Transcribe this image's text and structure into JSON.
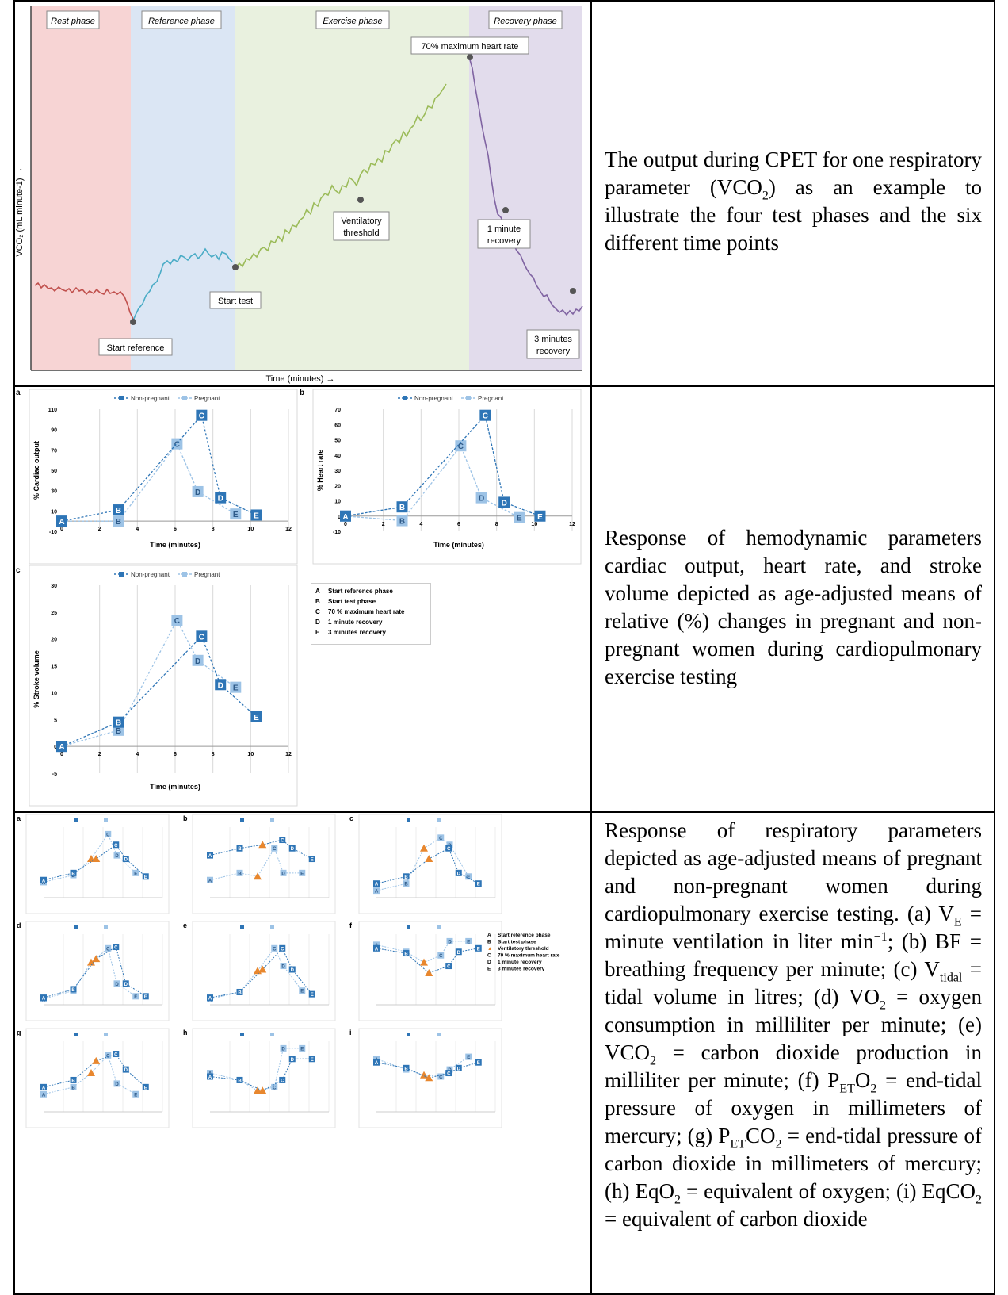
{
  "captions": {
    "row1": "The output during CPET for one respiratory parameter (VCO₂) as an example to illustrate the four test phases and the six different time points",
    "row2": "Response of hemodynamic parameters cardiac output, heart rate, and stroke volume depicted as age-adjusted means of relative (%) changes in pregnant and non-pregnant women during cardiopulmonary exercise testing",
    "row3": "Response of respiratory parameters depicted as age-adjusted means of pregnant and non-pregnant women during cardiopulmonary exercise testing. (a) V_E = minute ventilation in liter min⁻¹; (b) BF = breathing frequency per minute; (c) V_tidal = tidal volume in litres; (d) VO₂ = oxygen consumption in milliliter per minute; (e) VCO₂ = carbon dioxide production in milliliter per minute; (f) P_ETO₂ = end-tidal pressure of oxygen in millimeters of mercury; (g) P_ETCO₂ = end-tidal pressure of carbon dioxide in millimeters of mercury; (h) EqO₂ = equivalent of oxygen; (i) EqCO₂ = equivalent of carbon dioxide"
  },
  "caption3_parts": {
    "intro": "Response of respiratory parameters depicted as age-adjusted means of pregnant and non-pregnant women during cardiopulmonary exercise testing. (a) V",
    "ve_sub": "E",
    "a_rest": " = minute ventilation in liter min",
    "min_sup": "−1",
    "b": "; (b) BF = breathing frequency per minute; (c) V",
    "tidal_sub": "tidal",
    "c_rest": " = tidal volume in litres; (d) VO",
    "two1": "2",
    "d_rest": " = oxygen consumption in milliliter per minute; (e) VCO",
    "two2": "2",
    "e_rest": " = carbon dioxide production in milliliter per minute; (f) P",
    "et1": "ET",
    "f_mid": "O",
    "two3": "2",
    "f_rest": " = end-tidal pressure of oxygen in millimeters of mercury; (g) P",
    "et2": "ET",
    "g_mid": "CO",
    "two4": "2",
    "g_rest": " = end-tidal pressure of carbon dioxide in millimeters of mercury; (h) EqO",
    "two5": "2",
    "h_rest": " = equivalent of oxygen; (i) EqCO",
    "two6": "2",
    "i_rest": " = equivalent of carbon dioxide"
  },
  "caption1_parts": {
    "pre": "The output during CPET for one respiratory parameter (VCO",
    "sub": "2",
    "post": ") as an example to illustrate the four test phases and the six different time points"
  },
  "fig1": {
    "phases": [
      "Rest phase",
      "Reference phase",
      "Exercise phase",
      "Recovery phase"
    ],
    "phase_colors": [
      "#f7d4d4",
      "#dbe6f4",
      "#e9f1df",
      "#e2dcec"
    ],
    "line_colors": [
      "#c0504d",
      "#4bacc6",
      "#9bbb59",
      "#8064a2"
    ],
    "ylabel": "VCO₂ (mL minute-1) →",
    "xlabel": "Time (minutes) →",
    "annotations": [
      "Start reference",
      "Start test",
      "Ventilatory",
      "threshold",
      "70% maximum heart rate",
      "1 minute",
      "recovery",
      "3 minutes",
      "recovery"
    ]
  },
  "fig2_legend": {
    "nonpregnant": "Non-pregnant",
    "pregnant": "Pregnant",
    "colors": {
      "nonpregnant": "#2e75b6",
      "pregnant": "#9dc3e6"
    }
  },
  "fig2_key": [
    [
      "A",
      "Start reference phase"
    ],
    [
      "B",
      "Start test phase"
    ],
    [
      "C",
      "70 % maximum heart rate"
    ],
    [
      "D",
      "1 minute recovery"
    ],
    [
      "E",
      "3 minutes recovery"
    ]
  ],
  "fig3_key": [
    [
      "A",
      "Start reference phase"
    ],
    [
      "B",
      "Start test phase"
    ],
    [
      "▲",
      "Ventilatory threshold"
    ],
    [
      "C",
      "70 % maximum heart rate"
    ],
    [
      "D",
      "1 minute recovery"
    ],
    [
      "E",
      "3 minutes recovery"
    ]
  ],
  "chart_data": [
    {
      "panel": "a",
      "type": "line",
      "xlabel": "Time (minutes)",
      "ylabel": "% Cardiac output",
      "xlim": [
        0,
        12
      ],
      "ylim": [
        -10,
        110
      ],
      "xticks": [
        0,
        2,
        4,
        6,
        8,
        10,
        12
      ],
      "yticks": [
        -10,
        10,
        30,
        50,
        70,
        90,
        110
      ],
      "labels": [
        "A",
        "B",
        "C",
        "D",
        "E"
      ],
      "series": [
        {
          "name": "Non-pregnant",
          "x": [
            0,
            3,
            7.4,
            8.4,
            10.3
          ],
          "y": [
            0,
            11,
            104,
            23,
            6
          ]
        },
        {
          "name": "Pregnant",
          "x": [
            0,
            3,
            6.1,
            7.2,
            9.2
          ],
          "y": [
            0,
            0,
            76,
            29,
            7
          ]
        }
      ]
    },
    {
      "panel": "b",
      "type": "line",
      "xlabel": "Time (minutes)",
      "ylabel": "% Heart rate",
      "xlim": [
        0,
        12
      ],
      "ylim": [
        -10,
        70
      ],
      "xticks": [
        0,
        2,
        4,
        6,
        8,
        10,
        12
      ],
      "yticks": [
        -10,
        0,
        10,
        20,
        30,
        40,
        50,
        60,
        70
      ],
      "labels": [
        "A",
        "B",
        "C",
        "D",
        "E"
      ],
      "series": [
        {
          "name": "Non-pregnant",
          "x": [
            0,
            3,
            7.4,
            8.4,
            10.3
          ],
          "y": [
            0,
            6,
            66,
            9,
            0
          ]
        },
        {
          "name": "Pregnant",
          "x": [
            0,
            3,
            6.1,
            7.2,
            9.2
          ],
          "y": [
            0,
            -3,
            46,
            12,
            -1
          ]
        }
      ]
    },
    {
      "panel": "c",
      "type": "line",
      "xlabel": "Time (minutes)",
      "ylabel": "% Stroke volume",
      "xlim": [
        0,
        12
      ],
      "ylim": [
        -5,
        30
      ],
      "xticks": [
        0,
        2,
        4,
        6,
        8,
        10,
        12
      ],
      "yticks": [
        -5,
        0,
        5,
        10,
        15,
        20,
        25,
        30
      ],
      "labels": [
        "A",
        "B",
        "C",
        "D",
        "E"
      ],
      "series": [
        {
          "name": "Non-pregnant",
          "x": [
            0,
            3,
            7.4,
            8.4,
            10.3
          ],
          "y": [
            0,
            4.5,
            20.5,
            11.5,
            5.5
          ]
        },
        {
          "name": "Pregnant",
          "x": [
            0,
            3,
            6.1,
            7.2,
            9.2
          ],
          "y": [
            0,
            3,
            23.5,
            16,
            11
          ]
        }
      ]
    }
  ]
}
